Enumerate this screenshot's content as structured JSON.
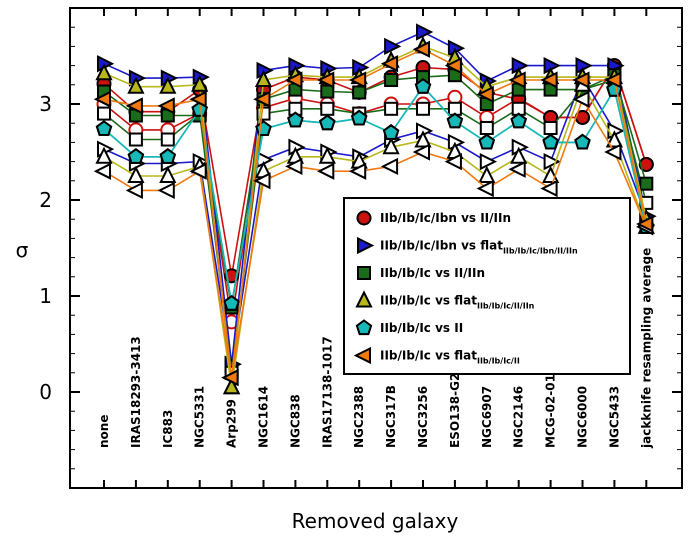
{
  "chart_data": {
    "type": "line",
    "xlabel": "Removed galaxy",
    "ylabel": "σ",
    "ylim": [
      -1,
      4
    ],
    "yticks": [
      "0",
      "1",
      "2",
      "3"
    ],
    "ytick_values": [
      0,
      1,
      2,
      3
    ],
    "grid": false,
    "legend_position": "center-right",
    "categories": [
      "none",
      "IRAS18293-3413",
      "IC883",
      "NGC5331",
      "Arp299",
      "NGC1614",
      "NGC838",
      "IRAS17138-1017",
      "NGC2388",
      "NGC317B",
      "NGC3256",
      "ESO138-G27",
      "NGC6907",
      "NGC2146",
      "MCG-02-01",
      "NGC6000",
      "NGC5433",
      "jackknife resampling average"
    ],
    "series": [
      {
        "name": "IIb/Ib/Ic/Ibn vs II/IIn",
        "legend_main": "IIb/Ib/Ic/Ibn vs II/IIn",
        "legend_sub": "",
        "color": "#cc1111",
        "marker": "circle",
        "values": [
          3.21,
          2.92,
          2.92,
          3.15,
          1.21,
          3.15,
          3.28,
          3.25,
          3.12,
          3.28,
          3.38,
          3.36,
          3.12,
          3.05,
          2.86,
          2.86,
          3.4,
          2.37
        ],
        "values_open": [
          3.0,
          2.73,
          2.73,
          2.9,
          0.73,
          2.96,
          3.06,
          3.0,
          2.9,
          3.0,
          3.0,
          3.07,
          2.86,
          3.06,
          2.86,
          2.86,
          3.4,
          2.37
        ]
      },
      {
        "name": "IIb/Ib/Ic/Ibn vs flatIIb/Ib/Ic/Ibn/II/IIn",
        "legend_main": "IIb/Ib/Ic/Ibn vs flat",
        "legend_sub": "IIb/Ib/Ic/Ibn/II/IIn",
        "color": "#1a1acc",
        "marker": "triangle-right",
        "values": [
          3.42,
          3.27,
          3.27,
          3.28,
          0.29,
          3.35,
          3.4,
          3.37,
          3.38,
          3.6,
          3.75,
          3.58,
          3.24,
          3.4,
          3.4,
          3.4,
          3.4,
          1.83
        ],
        "values_open": [
          2.53,
          2.38,
          2.38,
          2.4,
          0.29,
          2.42,
          2.55,
          2.5,
          2.45,
          2.63,
          2.72,
          2.6,
          2.4,
          2.55,
          2.4,
          3.28,
          2.72,
          1.83
        ]
      },
      {
        "name": "IIb/Ib/Ic vs II/IIn",
        "legend_main": "IIb/Ib/Ic vs II/IIn",
        "legend_sub": "",
        "color": "#1a6b1a",
        "marker": "square",
        "values": [
          3.13,
          2.88,
          2.88,
          2.88,
          0.88,
          3.05,
          3.15,
          3.13,
          3.12,
          3.25,
          3.28,
          3.3,
          3.0,
          3.15,
          3.15,
          3.15,
          3.3,
          2.17
        ],
        "values_open": [
          2.9,
          2.63,
          2.63,
          2.9,
          0.2,
          2.9,
          2.95,
          2.95,
          2.9,
          2.95,
          2.95,
          2.95,
          2.75,
          2.95,
          2.75,
          3.15,
          3.25,
          1.97
        ]
      },
      {
        "name": "IIb/Ib/Ic vs flatIIb/Ib/Ic/II/IIn",
        "legend_main": "IIb/Ib/Ic vs flat",
        "legend_sub": "IIb/Ib/Ic/II/IIn",
        "color": "#b8b81a",
        "marker": "triangle-up",
        "values": [
          3.32,
          3.18,
          3.18,
          3.2,
          0.05,
          3.25,
          3.3,
          3.28,
          3.28,
          3.45,
          3.6,
          3.48,
          3.18,
          3.28,
          3.28,
          3.28,
          3.28,
          1.8
        ],
        "values_open": [
          2.45,
          2.25,
          2.25,
          2.35,
          0.05,
          2.3,
          2.45,
          2.45,
          2.4,
          2.55,
          2.62,
          2.5,
          2.25,
          2.45,
          2.25,
          3.2,
          2.62,
          1.72
        ]
      },
      {
        "name": "IIb/Ib/Ic vs II",
        "legend_main": "IIb/Ib/Ic vs II",
        "legend_sub": "",
        "color": "#17b8b8",
        "marker": "pentagon",
        "values": [
          2.74,
          2.45,
          2.45,
          2.94,
          0.92,
          2.74,
          2.83,
          2.8,
          2.85,
          2.7,
          3.18,
          2.82,
          2.6,
          2.82,
          2.6,
          2.6,
          3.15,
          1.72
        ],
        "values_open": [
          2.74,
          2.45,
          2.45,
          2.94,
          0.92,
          2.74,
          2.83,
          2.8,
          2.85,
          2.7,
          3.18,
          2.82,
          2.6,
          2.82,
          2.6,
          2.6,
          3.15,
          1.72
        ]
      },
      {
        "name": "IIb/Ib/Ic vs flatIIb/Ib/Ic/II",
        "legend_main": "IIb/Ib/Ic vs flat",
        "legend_sub": "IIb/Ib/Ic/II",
        "color": "#f07a10",
        "marker": "triangle-left",
        "values": [
          3.05,
          2.98,
          2.98,
          3.05,
          0.15,
          3.05,
          3.25,
          3.25,
          3.25,
          3.42,
          3.57,
          3.4,
          3.1,
          3.25,
          3.25,
          3.25,
          3.25,
          1.75
        ],
        "values_open": [
          2.3,
          2.1,
          2.1,
          2.3,
          0.15,
          2.2,
          2.35,
          2.3,
          2.3,
          2.35,
          2.5,
          2.4,
          2.12,
          2.32,
          2.12,
          3.05,
          2.5,
          1.72
        ]
      }
    ]
  }
}
